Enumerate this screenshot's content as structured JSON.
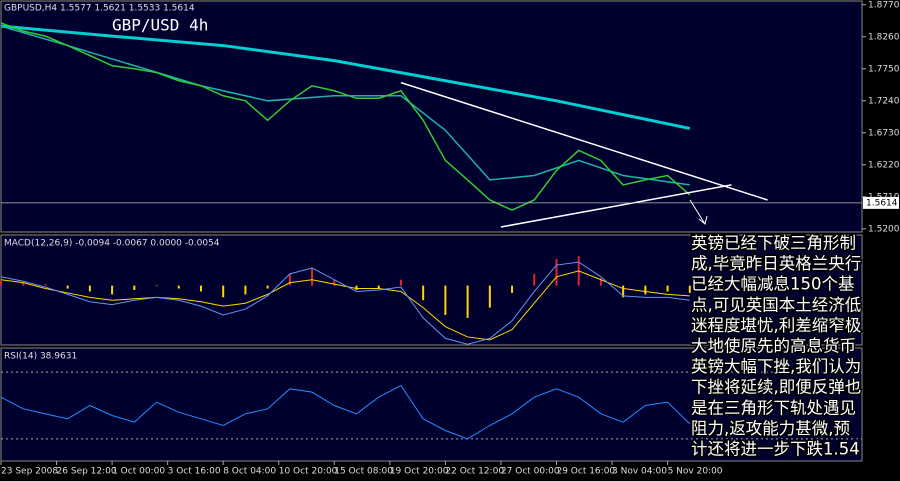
{
  "chart_data": [
    {
      "type": "line",
      "title": "GBP/USD 4h",
      "subtitle": "GBPUSD,H4  1.5577 1.5621 1.5533 1.5614",
      "xlim": [
        0,
        155
      ],
      "ylim": [
        1.515,
        1.883
      ],
      "yticks": [
        {
          "value": 1.877,
          "label": "1.8770"
        },
        {
          "value": 1.826,
          "label": "1.8260"
        },
        {
          "value": 1.775,
          "label": "1.7750"
        },
        {
          "value": 1.724,
          "label": "1.7240"
        },
        {
          "value": 1.673,
          "label": "1.6730"
        },
        {
          "value": 1.622,
          "label": "1.6220"
        },
        {
          "value": 1.571,
          "label": "1.5710"
        },
        {
          "value": 1.52,
          "label": "1.5200"
        }
      ],
      "last_price": 1.5614,
      "series": [
        {
          "color": "#00ced1",
          "width": 3,
          "x": [
            0,
            20,
            40,
            60,
            80,
            100,
            124
          ],
          "values": [
            1.843,
            1.827,
            1.812,
            1.788,
            1.756,
            1.724,
            1.68
          ]
        },
        {
          "color": "#20b2aa",
          "width": 1.5,
          "x": [
            0,
            12,
            24,
            36,
            48,
            60,
            72,
            80,
            88,
            96,
            104,
            112,
            124
          ],
          "values": [
            1.843,
            1.812,
            1.78,
            1.748,
            1.724,
            1.732,
            1.732,
            1.677,
            1.598,
            1.605,
            1.629,
            1.605,
            1.59
          ]
        },
        {
          "color": "#32cd32",
          "width": 1.5,
          "x": [
            0,
            4,
            8,
            12,
            16,
            20,
            24,
            28,
            32,
            36,
            40,
            44,
            48,
            52,
            56,
            60,
            64,
            68,
            72,
            76,
            80,
            84,
            88,
            92,
            96,
            100,
            104,
            108,
            112,
            116,
            120,
            124
          ],
          "values": [
            1.848,
            1.835,
            1.827,
            1.812,
            1.796,
            1.78,
            1.775,
            1.769,
            1.756,
            1.748,
            1.732,
            1.724,
            1.693,
            1.724,
            1.748,
            1.74,
            1.728,
            1.728,
            1.74,
            1.693,
            1.629,
            1.598,
            1.566,
            1.55,
            1.566,
            1.613,
            1.645,
            1.629,
            1.59,
            1.598,
            1.605,
            1.574
          ]
        }
      ],
      "trendlines": [
        {
          "color": "#ffffff",
          "x": [
            72,
            138
          ],
          "y": [
            1.753,
            1.566
          ]
        },
        {
          "color": "#ffffff",
          "x": [
            90,
            131.5
          ],
          "y": [
            1.523,
            1.59
          ]
        }
      ]
    },
    {
      "type": "combo",
      "title": "MACD(12,26,9) -0.0094 -0.0067 0.0000 -0.0054",
      "xlim": [
        0,
        155
      ],
      "ylim": [
        -0.0405,
        0.0345
      ],
      "series": [
        {
          "type": "bar",
          "color": "#ffd700",
          "up_color": "#e0262b",
          "x": [
            0,
            4,
            8,
            12,
            16,
            20,
            24,
            28,
            32,
            36,
            40,
            44,
            48,
            52,
            56,
            60,
            64,
            68,
            72,
            76,
            80,
            84,
            88,
            92,
            96,
            100,
            104,
            108,
            112,
            116,
            120,
            124
          ],
          "values": [
            0.003,
            0.002,
            0.001,
            -0.002,
            -0.004,
            -0.006,
            -0.003,
            0.0,
            -0.002,
            -0.004,
            -0.008,
            -0.006,
            -0.002,
            0.008,
            0.012,
            0.004,
            -0.003,
            -0.002,
            0.004,
            -0.01,
            -0.02,
            -0.022,
            -0.015,
            -0.005,
            0.008,
            0.018,
            0.02,
            0.005,
            -0.008,
            -0.006,
            -0.004,
            -0.005
          ]
        },
        {
          "type": "line",
          "color": "#ffd700",
          "x": [
            0,
            4,
            8,
            12,
            16,
            20,
            24,
            28,
            32,
            36,
            40,
            44,
            48,
            52,
            56,
            60,
            64,
            68,
            72,
            76,
            80,
            84,
            88,
            92,
            96,
            100,
            104,
            108,
            112,
            116,
            120,
            124
          ],
          "values": [
            0.004,
            0.002,
            -0.002,
            -0.005,
            -0.008,
            -0.01,
            -0.009,
            -0.008,
            -0.009,
            -0.011,
            -0.014,
            -0.012,
            -0.006,
            0.002,
            0.004,
            0.001,
            -0.002,
            -0.002,
            -0.004,
            -0.015,
            -0.028,
            -0.035,
            -0.037,
            -0.03,
            -0.012,
            0.006,
            0.01,
            0.004,
            -0.002,
            -0.004,
            -0.006,
            -0.007
          ]
        },
        {
          "type": "line",
          "color": "#6495ed",
          "x": [
            0,
            4,
            8,
            12,
            16,
            20,
            24,
            28,
            32,
            36,
            40,
            44,
            48,
            52,
            56,
            60,
            64,
            68,
            72,
            76,
            80,
            84,
            88,
            92,
            96,
            100,
            104,
            108,
            112,
            116,
            120,
            124
          ],
          "values": [
            0.006,
            0.003,
            -0.001,
            -0.006,
            -0.011,
            -0.013,
            -0.01,
            -0.008,
            -0.01,
            -0.014,
            -0.02,
            -0.016,
            -0.007,
            0.008,
            0.012,
            0.004,
            -0.004,
            -0.003,
            -0.001,
            -0.022,
            -0.036,
            -0.04,
            -0.036,
            -0.024,
            -0.004,
            0.014,
            0.016,
            0.006,
            -0.007,
            -0.008,
            -0.008,
            -0.01
          ]
        }
      ]
    },
    {
      "type": "line",
      "title": "RSI(14) 38.9631",
      "xlim": [
        0,
        155
      ],
      "ylim": [
        16.7,
        84.5
      ],
      "levels": [
        30,
        70
      ],
      "xticks": [
        {
          "value": 0,
          "label": "23 Sep 2008"
        },
        {
          "value": 10,
          "label": "26 Sep 12:00"
        },
        {
          "value": 20,
          "label": "1 Oct 00:00"
        },
        {
          "value": 30,
          "label": "3 Oct 16:00"
        },
        {
          "value": 40,
          "label": "8 Oct 04:00"
        },
        {
          "value": 50,
          "label": "10 Oct 20:00"
        },
        {
          "value": 60,
          "label": "15 Oct 08:00"
        },
        {
          "value": 70,
          "label": "19 Oct 20:00"
        },
        {
          "value": 80,
          "label": "22 Oct 12:00"
        },
        {
          "value": 90,
          "label": "27 Oct 00:00"
        },
        {
          "value": 100,
          "label": "29 Oct 16:00"
        },
        {
          "value": 110,
          "label": "3 Nov 04:00"
        },
        {
          "value": 120,
          "label": "5 Nov 20:00"
        }
      ],
      "series": [
        {
          "color": "#1e90ff",
          "width": 1,
          "x": [
            0,
            4,
            8,
            12,
            16,
            20,
            24,
            28,
            32,
            36,
            40,
            44,
            48,
            52,
            56,
            60,
            64,
            68,
            72,
            76,
            80,
            84,
            88,
            92,
            96,
            100,
            104,
            108,
            112,
            116,
            120,
            124
          ],
          "values": [
            55,
            48,
            45,
            42,
            50,
            44,
            40,
            52,
            46,
            42,
            38,
            45,
            48,
            60,
            58,
            50,
            45,
            55,
            62,
            42,
            35,
            30,
            38,
            45,
            55,
            60,
            55,
            45,
            40,
            50,
            52,
            39
          ]
        }
      ]
    }
  ],
  "annotation": {
    "lines": [
      "英镑已经下破三角形制",
      "成,毕竟昨日英格兰央行",
      "已经大幅减息150个基",
      "点,可见英国本土经济低",
      "迷程度堪忧,利差缩窄极",
      "大地使原先的高息货币",
      "英镑大幅下挫,我们认为",
      "下挫将延续,即便反弹也",
      "是在三角形下轨处遇见",
      "阻力,返攻能力甚微,预",
      "计还将进一步下跌1.54"
    ]
  }
}
